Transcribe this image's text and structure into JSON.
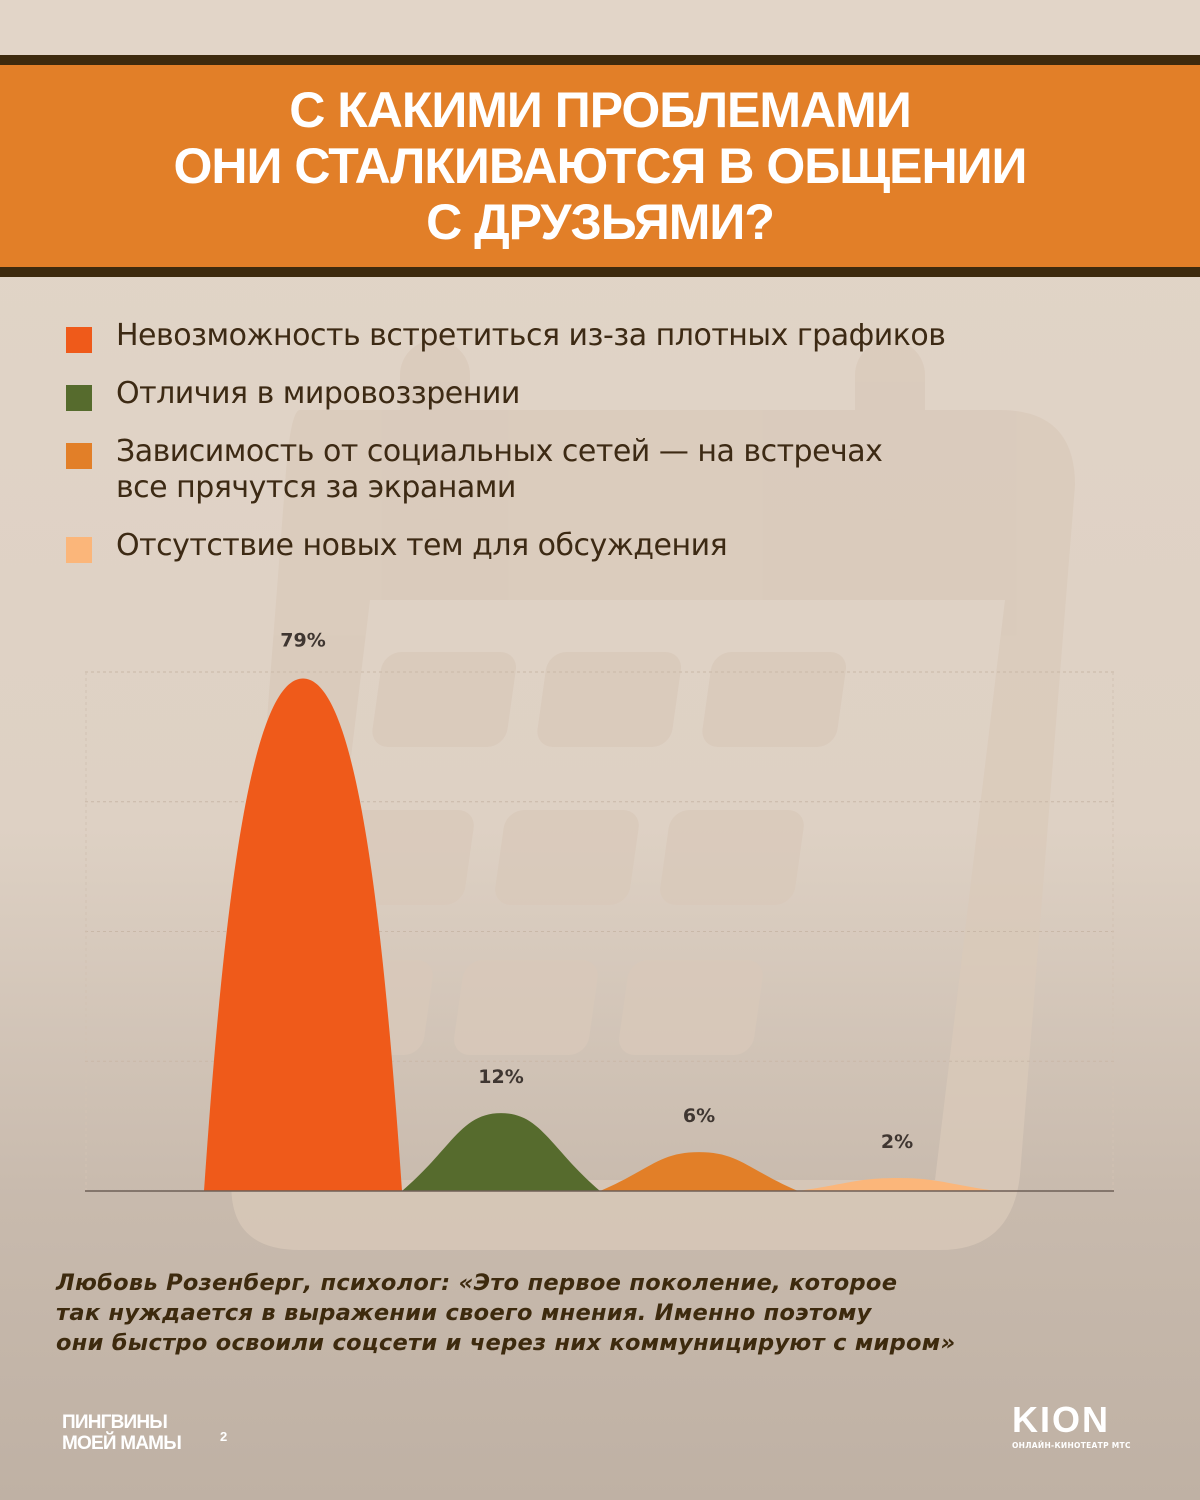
{
  "header": {
    "title": "С какими проблемами\nони сталкиваются в общении\nс друзьями?"
  },
  "legend": {
    "items": [
      {
        "label": "Невозможность встретиться из-за плотных графиков",
        "color": "#ef5a1a"
      },
      {
        "label": "Отличия в мировоззрении",
        "color": "#566b2d"
      },
      {
        "label": "Зависимость от социальных сетей — на встречах\nвсе прячутся за экранами",
        "color": "#e27f28"
      },
      {
        "label": "Отсутствие новых тем для обсуждения",
        "color": "#fbb67a"
      }
    ]
  },
  "chart_data": {
    "type": "area",
    "title": "С какими проблемами они сталкиваются в общении с друзьями?",
    "categories": [
      "Невозможность встретиться из-за плотных графиков",
      "Отличия в мировоззрении",
      "Зависимость от социальных сетей — на встречах все прячутся за экранами",
      "Отсутствие новых тем для обсуждения"
    ],
    "values": [
      79,
      12,
      6,
      2
    ],
    "value_labels": [
      "79%",
      "12%",
      "6%",
      "2%"
    ],
    "colors": [
      "#ef5a1a",
      "#566b2d",
      "#e27f28",
      "#fbb67a"
    ],
    "xlabel": "",
    "ylabel": "",
    "ylim": [
      0,
      80
    ],
    "grid": true,
    "legend_position": "top"
  },
  "quote": {
    "text": "Любовь Розенберг, психолог: «Это первое поколение, которое\nтак нуждается в выражении своего мнения. Именно поэтому\nони быстро освоили соцсети и через них коммуницируют с миром»"
  },
  "footer": {
    "left_logo_line1": "Пингвины",
    "left_logo_line2": "моей мамы",
    "left_logo_sup": "2",
    "right_logo": "KION",
    "right_logo_sub": "ОНЛАЙН-КИНОТЕАТР МТС"
  }
}
